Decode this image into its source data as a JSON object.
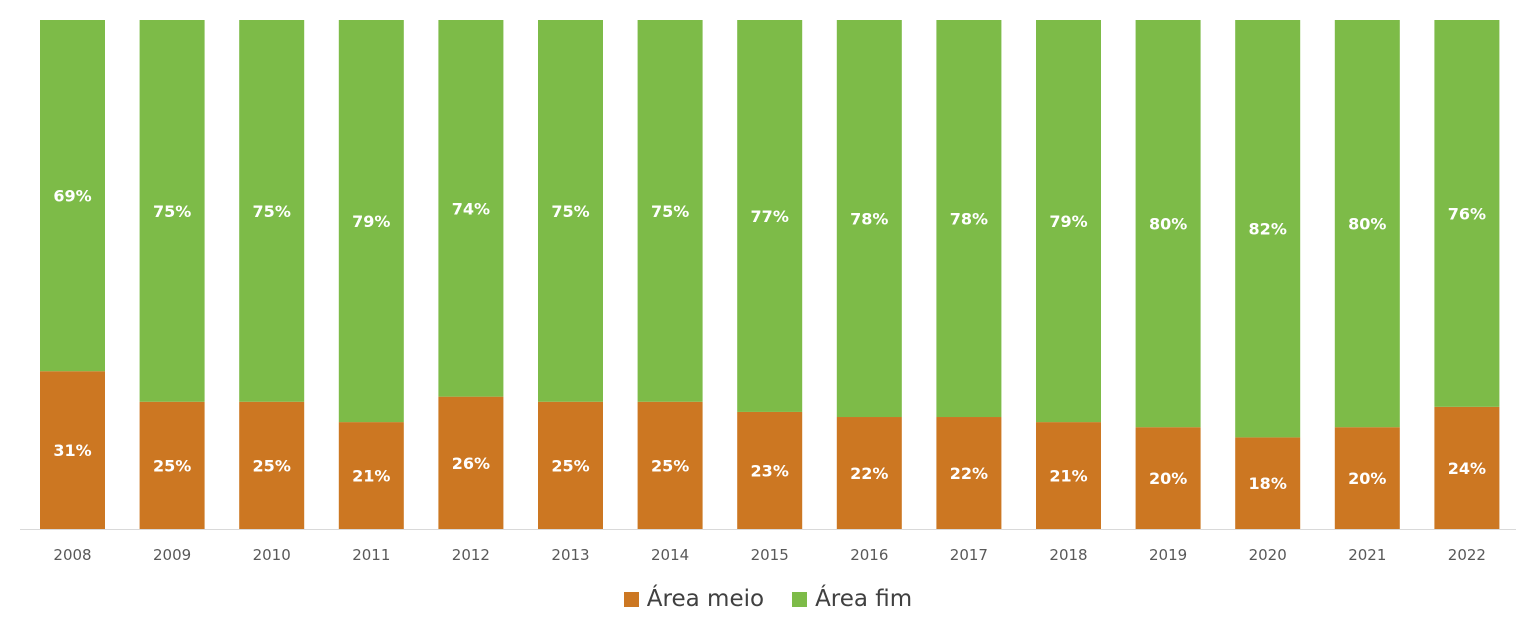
{
  "chart_data": {
    "type": "bar",
    "stacked": true,
    "categories": [
      "2008",
      "2009",
      "2010",
      "2011",
      "2012",
      "2013",
      "2014",
      "2015",
      "2016",
      "2017",
      "2018",
      "2019",
      "2020",
      "2021",
      "2022"
    ],
    "series": [
      {
        "name": "Área meio",
        "color": "#CC7722",
        "values": [
          31,
          25,
          25,
          21,
          26,
          25,
          25,
          23,
          22,
          22,
          21,
          20,
          18,
          20,
          24
        ],
        "labels": [
          "31%",
          "25%",
          "25%",
          "21%",
          "26%",
          "25%",
          "25%",
          "23%",
          "22%",
          "22%",
          "21%",
          "20%",
          "18%",
          "20%",
          "24%"
        ]
      },
      {
        "name": "Área fim",
        "color": "#7DBB48",
        "values": [
          69,
          75,
          75,
          79,
          74,
          75,
          75,
          77,
          78,
          78,
          79,
          80,
          82,
          80,
          76
        ],
        "labels": [
          "69%",
          "75%",
          "75%",
          "79%",
          "74%",
          "75%",
          "75%",
          "77%",
          "78%",
          "78%",
          "79%",
          "80%",
          "82%",
          "80%",
          "76%"
        ]
      }
    ],
    "ylim": [
      0,
      100
    ],
    "grid": false,
    "legend_position": "bottom-center"
  }
}
